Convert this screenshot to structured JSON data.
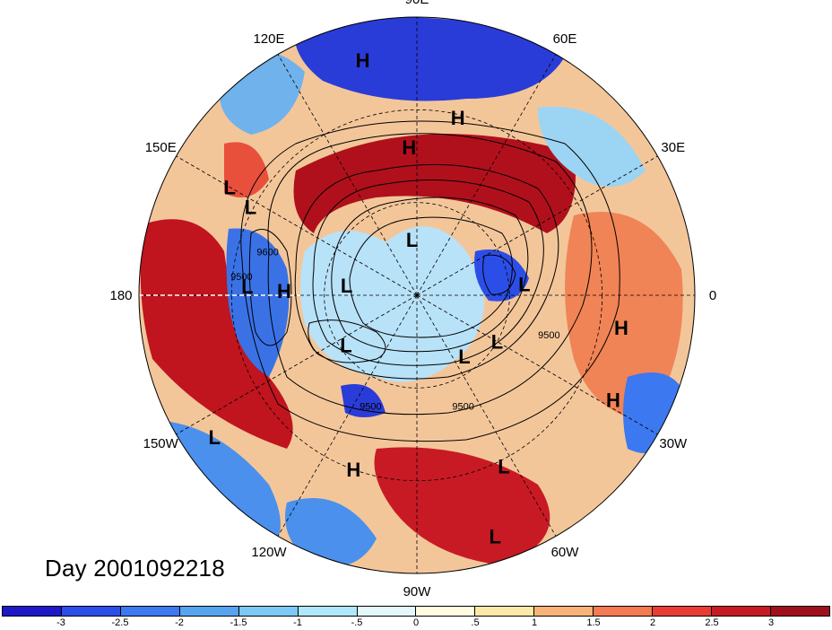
{
  "title": "Day 2001092218",
  "longitude_labels": [
    {
      "text": "90E",
      "lon": 90
    },
    {
      "text": "60E",
      "lon": 60
    },
    {
      "text": "30E",
      "lon": 30
    },
    {
      "text": "0",
      "lon": 0
    },
    {
      "text": "30W",
      "lon": -30
    },
    {
      "text": "60W",
      "lon": -60
    },
    {
      "text": "90W",
      "lon": -90
    },
    {
      "text": "120W",
      "lon": -120
    },
    {
      "text": "150W",
      "lon": -150
    },
    {
      "text": "180",
      "lon": 180
    },
    {
      "text": "150E",
      "lon": 150
    },
    {
      "text": "120E",
      "lon": 120
    }
  ],
  "pressure_centers": [
    {
      "text": "H",
      "lon": 103,
      "lat": 12
    },
    {
      "text": "H",
      "lon": 77,
      "lat": 31
    },
    {
      "text": "H",
      "lon": 93,
      "lat": 42
    },
    {
      "text": "L",
      "lon": 150,
      "lat": 20
    },
    {
      "text": "L",
      "lon": 152,
      "lat": 29
    },
    {
      "text": "L",
      "lon": 177,
      "lat": 35
    },
    {
      "text": "H",
      "lon": 178,
      "lat": 47
    },
    {
      "text": "L",
      "lon": 172,
      "lat": 67
    },
    {
      "text": "L",
      "lon": 95,
      "lat": 72
    },
    {
      "text": "L",
      "lon": 6,
      "lat": 55
    },
    {
      "text": "H",
      "lon": -9,
      "lat": 23
    },
    {
      "text": "H",
      "lon": -28,
      "lat": 18
    },
    {
      "text": "L",
      "lon": -145,
      "lat": 62
    },
    {
      "text": "L",
      "lon": -52,
      "lat": 65
    },
    {
      "text": "L",
      "lon": -30,
      "lat": 60
    },
    {
      "text": "L",
      "lon": -145,
      "lat": 10
    },
    {
      "text": "H",
      "lon": -110,
      "lat": 30
    },
    {
      "text": "L",
      "lon": -63,
      "lat": 28
    },
    {
      "text": "L",
      "lon": -72,
      "lat": 8
    }
  ],
  "contour_labels": [
    {
      "text": "9500",
      "lon": -18,
      "lat": 45
    },
    {
      "text": "9500",
      "lon": -112,
      "lat": 50
    },
    {
      "text": "9500",
      "lon": -68,
      "lat": 50
    },
    {
      "text": "9500",
      "lon": 175,
      "lat": 33
    },
    {
      "text": "9600",
      "lon": 165,
      "lat": 40
    }
  ],
  "colorbar": {
    "colors": [
      "#1e18c8",
      "#2c4ee8",
      "#3c78f0",
      "#56a4f0",
      "#7cc8f6",
      "#aee8fa",
      "#e4f8fc",
      "#fffce2",
      "#fce8a8",
      "#f8b478",
      "#f47a52",
      "#e83c34",
      "#c81a24",
      "#a0101c"
    ],
    "labels": [
      "-3",
      "-2.5",
      "-2",
      "-1.5",
      "-1",
      "-.5",
      "0",
      ".5",
      "1",
      "1.5",
      "2",
      "2.5",
      "3"
    ]
  }
}
